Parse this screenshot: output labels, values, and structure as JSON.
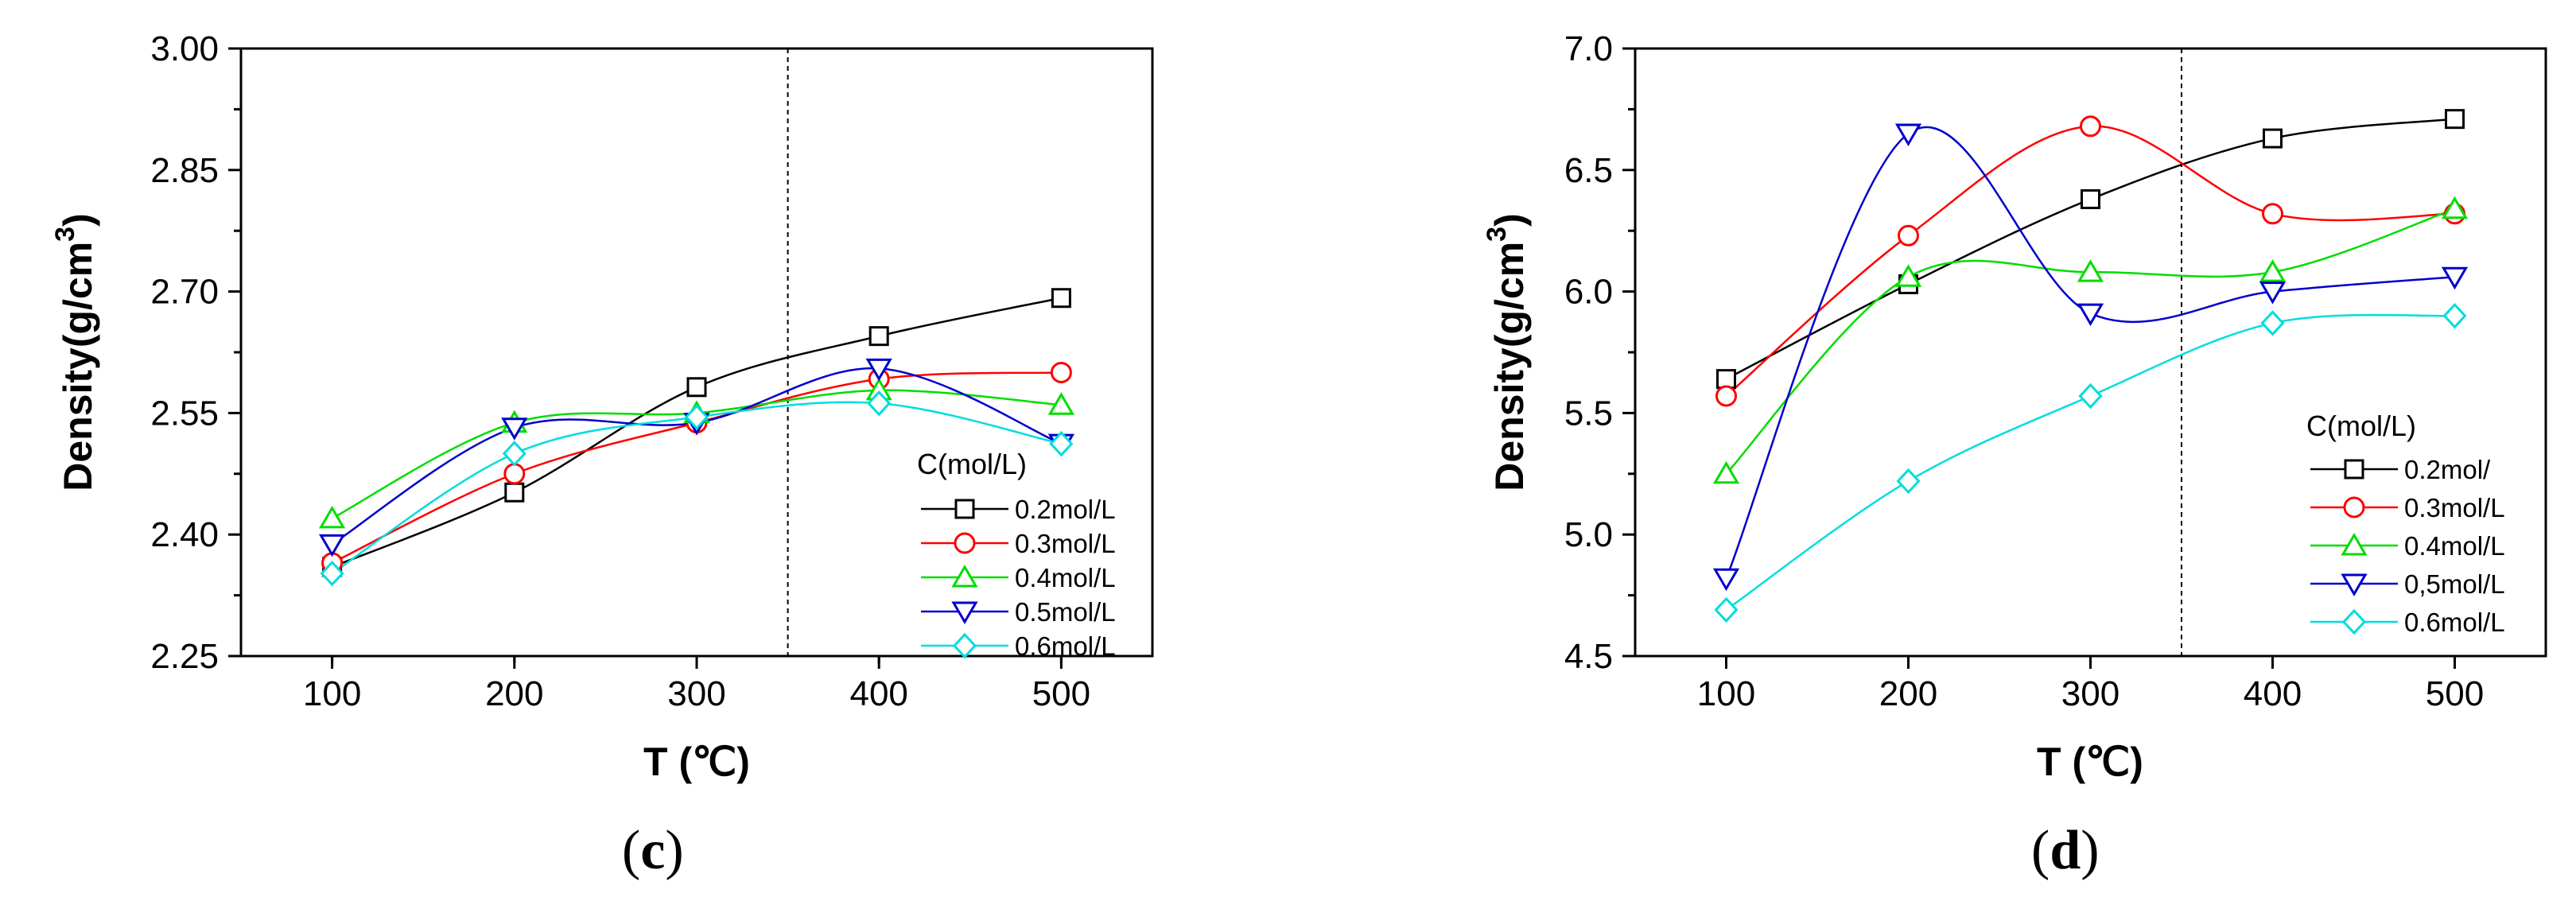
{
  "chart_data": [
    {
      "type": "line",
      "panel_label": "c",
      "xlabel": "T (℃)",
      "ylabel": "Density(g/cm3)",
      "xlim": [
        50,
        550
      ],
      "ylim": [
        2.25,
        3.0
      ],
      "x_ticks": [
        "100",
        "200",
        "300",
        "400",
        "500"
      ],
      "y_ticks": [
        "2.25",
        "2.40",
        "2.55",
        "2.70",
        "2.85",
        "3.00"
      ],
      "vline_x": 350,
      "legend_title": "C(mol/L)",
      "legend_position": "bottom-right",
      "x": [
        100,
        200,
        300,
        400,
        500
      ],
      "series": [
        {
          "name": "0.2mol/L",
          "color": "#000000",
          "marker": "square",
          "values": [
            2.36,
            2.452,
            2.582,
            2.645,
            2.692
          ]
        },
        {
          "name": "0.3mol/L",
          "color": "#ff0000",
          "marker": "circle",
          "values": [
            2.365,
            2.475,
            2.538,
            2.592,
            2.6
          ]
        },
        {
          "name": "0.4mol/L",
          "color": "#00dd00",
          "marker": "triangle-up",
          "values": [
            2.42,
            2.538,
            2.55,
            2.578,
            2.56
          ]
        },
        {
          "name": "0.5mol/L",
          "color": "#0000cc",
          "marker": "triangle-down",
          "values": [
            2.388,
            2.532,
            2.538,
            2.605,
            2.512
          ]
        },
        {
          "name": "0.6mol/L",
          "color": "#00dddd",
          "marker": "diamond",
          "values": [
            2.352,
            2.5,
            2.545,
            2.562,
            2.512
          ]
        }
      ]
    },
    {
      "type": "line",
      "panel_label": "d",
      "xlabel": "T (℃)",
      "ylabel": "Density(g/cm3)",
      "xlim": [
        50,
        550
      ],
      "ylim": [
        4.5,
        7.0
      ],
      "x_ticks": [
        "100",
        "200",
        "300",
        "400",
        "500"
      ],
      "y_ticks": [
        "4.5",
        "5.0",
        "5.5",
        "6.0",
        "6.5",
        "7.0"
      ],
      "vline_x": 350,
      "legend_title": "C(mol/L)",
      "legend_position": "bottom-right",
      "x": [
        100,
        200,
        300,
        400,
        500
      ],
      "series": [
        {
          "name": "0.2mol/",
          "color": "#000000",
          "marker": "square",
          "values": [
            5.64,
            6.03,
            6.38,
            6.63,
            6.71
          ]
        },
        {
          "name": "0.3mol/L",
          "color": "#ff0000",
          "marker": "circle",
          "values": [
            5.57,
            6.23,
            6.68,
            6.32,
            6.32
          ]
        },
        {
          "name": "0.4mol/L",
          "color": "#00dd00",
          "marker": "triangle-up",
          "values": [
            5.25,
            6.06,
            6.08,
            6.08,
            6.34
          ]
        },
        {
          "name": "0,5mol/L",
          "color": "#0000cc",
          "marker": "triangle-down",
          "values": [
            4.82,
            6.65,
            5.91,
            6.0,
            6.06
          ]
        },
        {
          "name": "0.6mol/L",
          "color": "#00dddd",
          "marker": "diamond",
          "values": [
            4.69,
            5.22,
            5.57,
            5.87,
            5.9
          ]
        }
      ]
    }
  ]
}
